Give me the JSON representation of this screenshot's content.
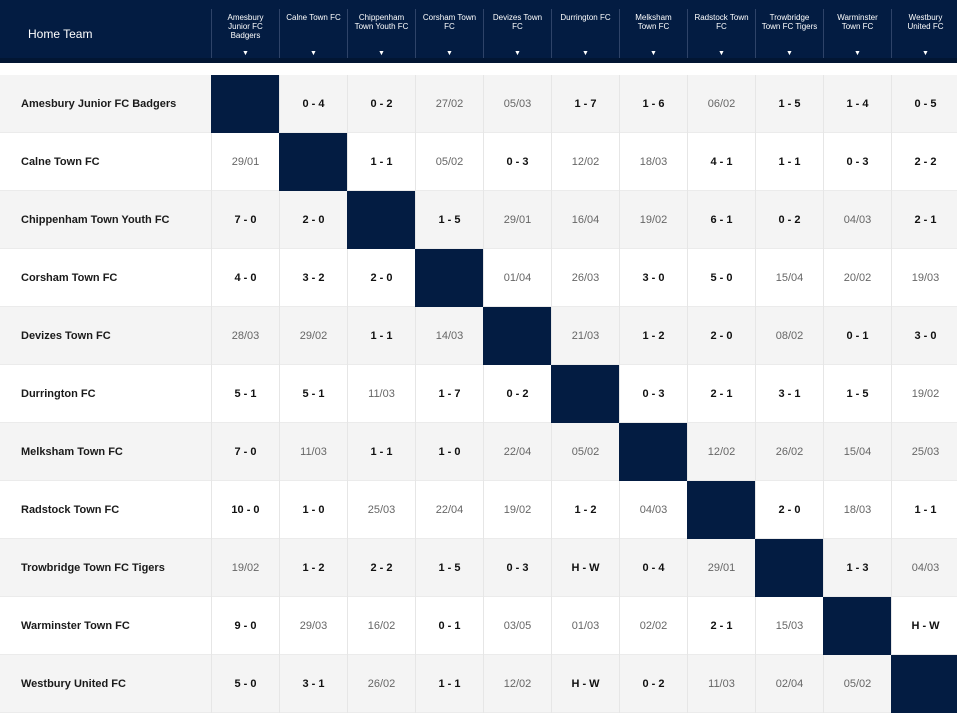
{
  "header": {
    "home_team_label": "Home Team",
    "arrow": "▼",
    "teams": [
      [
        "Amesbury",
        "Junior FC",
        "Badgers"
      ],
      [
        "Calne Town FC"
      ],
      [
        "Chippenham",
        "Town Youth FC"
      ],
      [
        "Corsham Town",
        "FC"
      ],
      [
        "Devizes Town",
        "FC"
      ],
      [
        "Durrington FC"
      ],
      [
        "Melksham",
        "Town FC"
      ],
      [
        "Radstock Town",
        "FC"
      ],
      [
        "Trowbridge",
        "Town FC Tigers"
      ],
      [
        "Warminster",
        "Town FC"
      ],
      [
        "Westbury",
        "United FC"
      ]
    ]
  },
  "rows": [
    {
      "team": "Amesbury Junior FC Badgers",
      "cells": [
        "",
        "0 - 4",
        "0 - 2",
        "27/02",
        "05/03",
        "1 - 7",
        "1 - 6",
        "06/02",
        "1 - 5",
        "1 - 4",
        "0 - 5"
      ]
    },
    {
      "team": "Calne Town FC",
      "cells": [
        "29/01",
        "",
        "1 - 1",
        "05/02",
        "0 - 3",
        "12/02",
        "18/03",
        "4 - 1",
        "1 - 1",
        "0 - 3",
        "2 - 2"
      ]
    },
    {
      "team": "Chippenham Town Youth FC",
      "cells": [
        "7 - 0",
        "2 - 0",
        "",
        "1 - 5",
        "29/01",
        "16/04",
        "19/02",
        "6 - 1",
        "0 - 2",
        "04/03",
        "2 - 1"
      ]
    },
    {
      "team": "Corsham Town FC",
      "cells": [
        "4 - 0",
        "3 - 2",
        "2 - 0",
        "",
        "01/04",
        "26/03",
        "3 - 0",
        "5 - 0",
        "15/04",
        "20/02",
        "19/03"
      ]
    },
    {
      "team": "Devizes Town FC",
      "cells": [
        "28/03",
        "29/02",
        "1 - 1",
        "14/03",
        "",
        "21/03",
        "1 - 2",
        "2 - 0",
        "08/02",
        "0 - 1",
        "3 - 0"
      ]
    },
    {
      "team": "Durrington FC",
      "cells": [
        "5 - 1",
        "5 - 1",
        "11/03",
        "1 - 7",
        "0 - 2",
        "",
        "0 - 3",
        "2 - 1",
        "3 - 1",
        "1 - 5",
        "19/02"
      ]
    },
    {
      "team": "Melksham Town FC",
      "cells": [
        "7 - 0",
        "11/03",
        "1 - 1",
        "1 - 0",
        "22/04",
        "05/02",
        "",
        "12/02",
        "26/02",
        "15/04",
        "25/03"
      ]
    },
    {
      "team": "Radstock Town FC",
      "cells": [
        "10 - 0",
        "1 - 0",
        "25/03",
        "22/04",
        "19/02",
        "1 - 2",
        "04/03",
        "",
        "2 - 0",
        "18/03",
        "1 - 1"
      ]
    },
    {
      "team": "Trowbridge Town FC Tigers",
      "cells": [
        "19/02",
        "1 - 2",
        "2 - 2",
        "1 - 5",
        "0 - 3",
        "H - W",
        "0 - 4",
        "29/01",
        "",
        "1 - 3",
        "04/03"
      ]
    },
    {
      "team": "Warminster Town FC",
      "cells": [
        "9 - 0",
        "29/03",
        "16/02",
        "0 - 1",
        "03/05",
        "01/03",
        "02/02",
        "2 - 1",
        "15/03",
        "",
        "H - W"
      ]
    },
    {
      "team": "Westbury United FC",
      "cells": [
        "5 - 0",
        "3 - 1",
        "26/02",
        "1 - 1",
        "12/02",
        "H - W",
        "0 - 2",
        "11/03",
        "02/04",
        "05/02",
        ""
      ]
    }
  ],
  "colors": {
    "header_bg": "#031c42",
    "self_cell": "#031c42",
    "row_shaded": "#f4f4f4"
  }
}
